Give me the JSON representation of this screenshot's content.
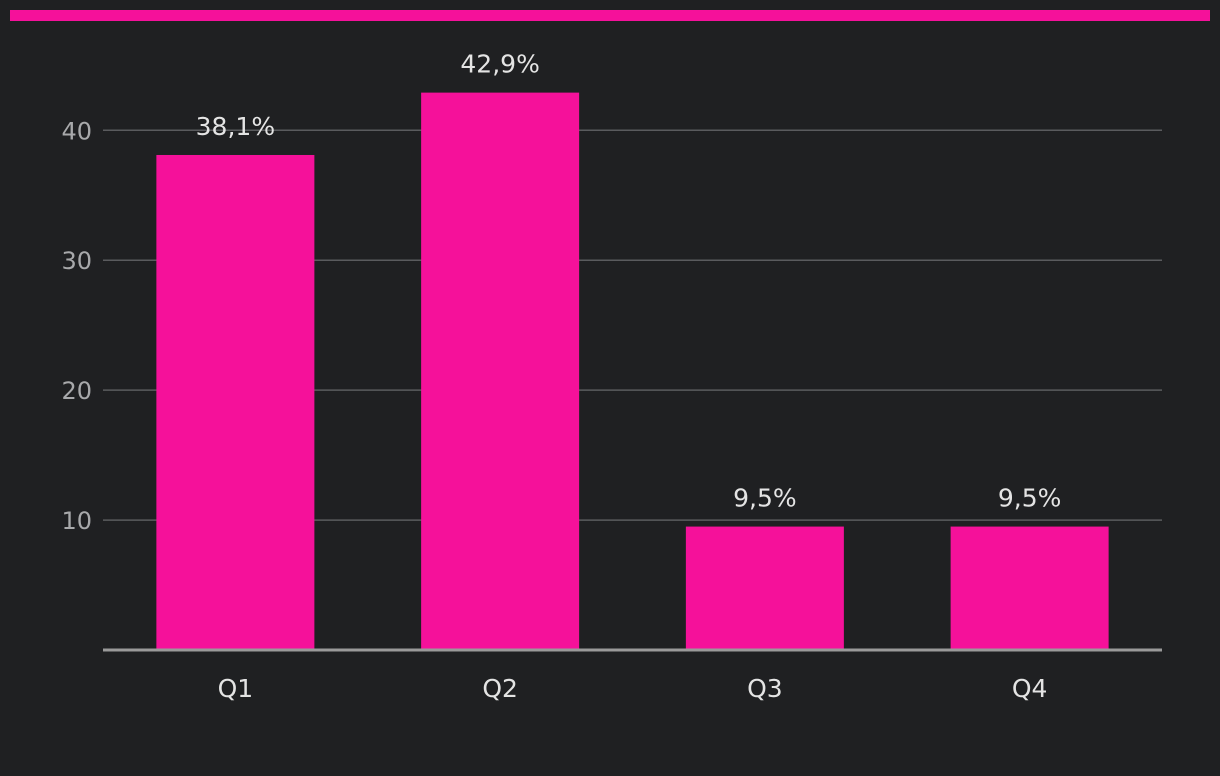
{
  "colors": {
    "background": "#1f2022",
    "accent": "#f5119a",
    "bar": "#f5119a",
    "gridline": "#5a5b5e",
    "axis": "#9a9a9a",
    "tick_text": "#a8a9ab",
    "label_text": "#e4e4e4"
  },
  "chart_data": {
    "type": "bar",
    "categories": [
      "Q1",
      "Q2",
      "Q3",
      "Q4"
    ],
    "values": [
      38.1,
      42.9,
      9.5,
      9.5
    ],
    "value_labels": [
      "38,1%",
      "42,9%",
      "9,5%",
      "9,5%"
    ],
    "y_ticks": [
      10,
      20,
      30,
      40
    ],
    "ylim": [
      0,
      46.95
    ],
    "grid": true,
    "legend": "none"
  }
}
